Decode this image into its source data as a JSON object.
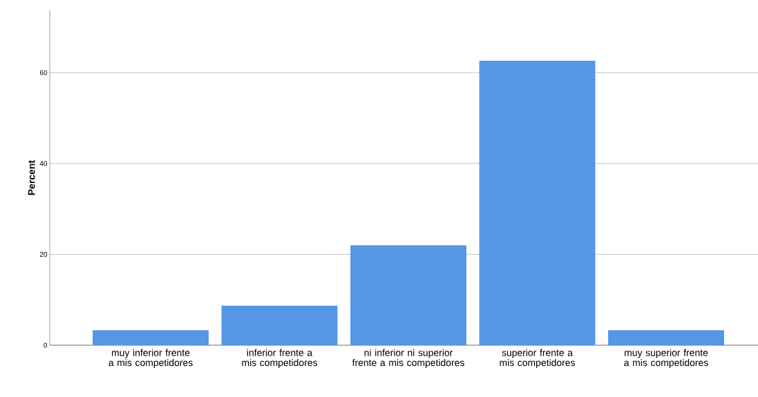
{
  "chart_data": {
    "type": "bar",
    "ylabel": "Percent",
    "categories": [
      "muy inferior frente a mis competidores",
      "inferior frente a mis competidores",
      "ni inferior ni superior frente a mis competidores",
      "superior frente a mis competidores",
      "muy superior frente a mis competidores"
    ],
    "values": [
      3.3,
      8.7,
      22.0,
      62.6,
      3.3
    ],
    "color": "#5596e6",
    "ylim": [
      0,
      73.7
    ],
    "yticks": [
      0,
      20,
      40,
      60
    ],
    "grid": "y"
  }
}
